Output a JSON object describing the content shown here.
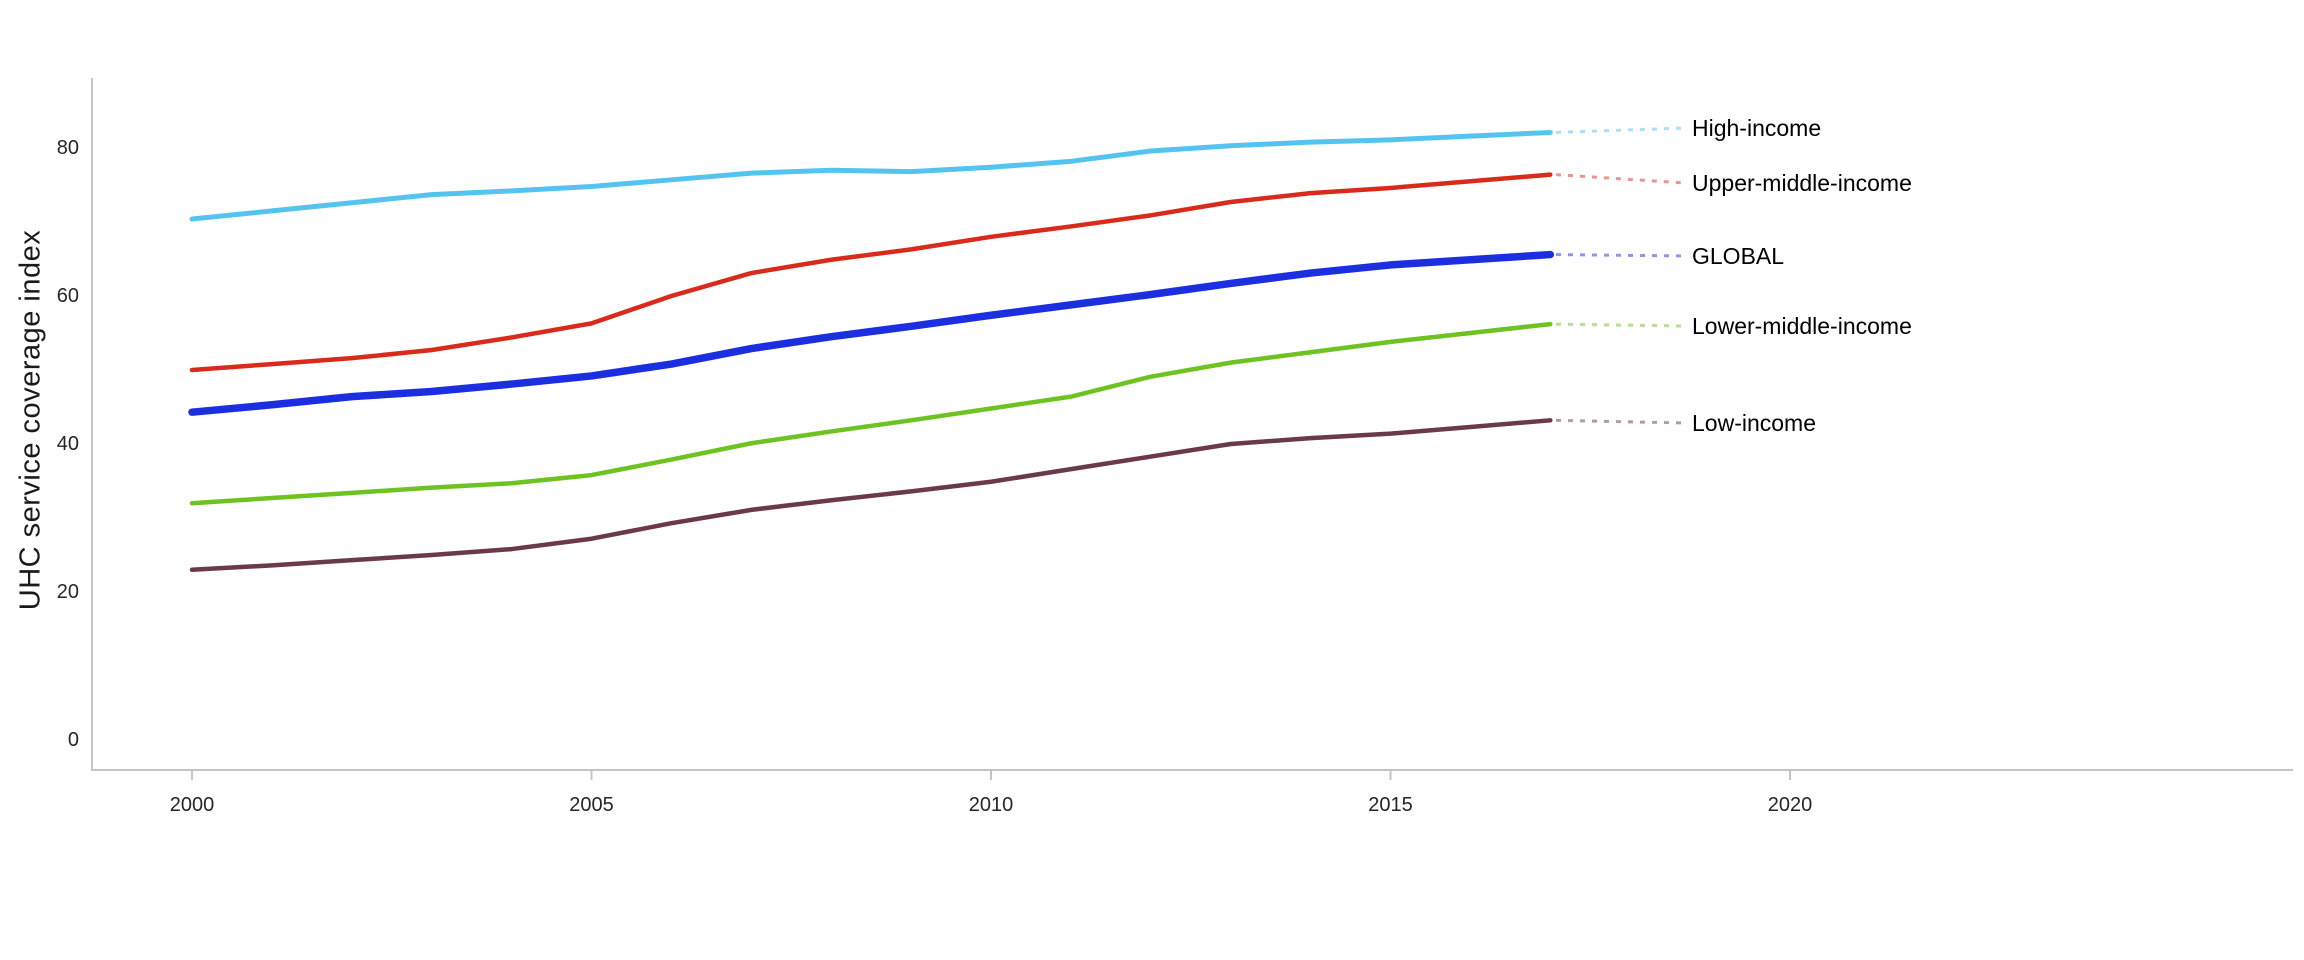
{
  "chart_data": {
    "type": "line",
    "title": "",
    "ylabel": "UHC service coverage index",
    "xlabel": "",
    "x": [
      2000,
      2001,
      2002,
      2003,
      2004,
      2005,
      2006,
      2007,
      2008,
      2009,
      2010,
      2011,
      2012,
      2013,
      2014,
      2015,
      2016,
      2017
    ],
    "series": [
      {
        "name": "High-income",
        "color": "#55C3F0",
        "line_width": 5,
        "values": [
          70.4,
          71.5,
          72.6,
          73.7,
          74.2,
          74.8,
          75.7,
          76.6,
          77.0,
          76.8,
          77.4,
          78.2,
          79.6,
          80.3,
          80.8,
          81.1,
          81.6,
          82.1
        ]
      },
      {
        "name": "Upper-middle-income",
        "color": "#D92B1B",
        "line_width": 4.5,
        "values": [
          50.0,
          50.8,
          51.6,
          52.7,
          54.4,
          56.3,
          60.0,
          63.1,
          64.9,
          66.3,
          68.0,
          69.4,
          70.9,
          72.7,
          73.9,
          74.6,
          75.5,
          76.4
        ]
      },
      {
        "name": "GLOBAL",
        "color": "#1B2FE1",
        "line_width": 7.5,
        "values": [
          44.3,
          45.3,
          46.4,
          47.1,
          48.1,
          49.2,
          50.8,
          52.9,
          54.5,
          55.9,
          57.4,
          58.8,
          60.2,
          61.7,
          63.1,
          64.2,
          64.9,
          65.6
        ]
      },
      {
        "name": "Lower-middle-income",
        "color": "#6EC322",
        "line_width": 4.5,
        "values": [
          32.0,
          32.7,
          33.4,
          34.1,
          34.7,
          35.8,
          37.9,
          40.1,
          41.7,
          43.2,
          44.8,
          46.4,
          49.1,
          51.0,
          52.4,
          53.8,
          55.0,
          56.2
        ]
      },
      {
        "name": "Low-income",
        "color": "#6B3A48",
        "line_width": 4.5,
        "values": [
          23.0,
          23.6,
          24.3,
          25.0,
          25.8,
          27.2,
          29.3,
          31.1,
          32.4,
          33.6,
          34.9,
          36.6,
          38.3,
          40.0,
          40.8,
          41.4,
          42.3,
          43.2
        ]
      }
    ],
    "xticks": [
      "2000",
      "2005",
      "2010",
      "2015",
      "2020"
    ],
    "yticks": [
      "0",
      "20",
      "40",
      "60",
      "80"
    ],
    "xlim": [
      1998.75,
      2026.3
    ],
    "ylim": [
      -4,
      89.5
    ],
    "grid": false,
    "legend_position": "right-end-labels",
    "axis_color": "#C4C4C4",
    "tick_text_color": "#262626",
    "label_text_color": "#000000"
  }
}
